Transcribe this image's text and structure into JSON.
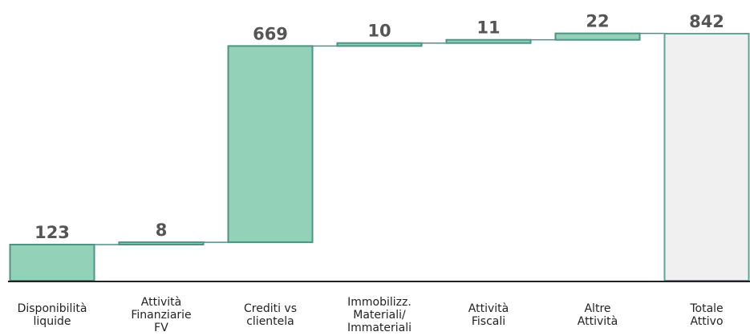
{
  "chart_data": {
    "type": "waterfall",
    "categories": [
      "Disponibilità\nliquide",
      "Attività\nFinanziarie\nFV",
      "Crediti vs\nclientela",
      "Immobilizz.\nMateriali/\nImmateriali",
      "Attività\nFiscali",
      "Altre\nAttività",
      "Totale\nAttivo"
    ],
    "values": [
      123,
      8,
      669,
      10,
      11,
      22,
      842
    ],
    "color": "#93d2b8",
    "edge_color": "#4d9384",
    "total_color": "#f0f0f0",
    "total_edge_color": "#5fa595",
    "ylim": [
      0,
      842
    ]
  }
}
